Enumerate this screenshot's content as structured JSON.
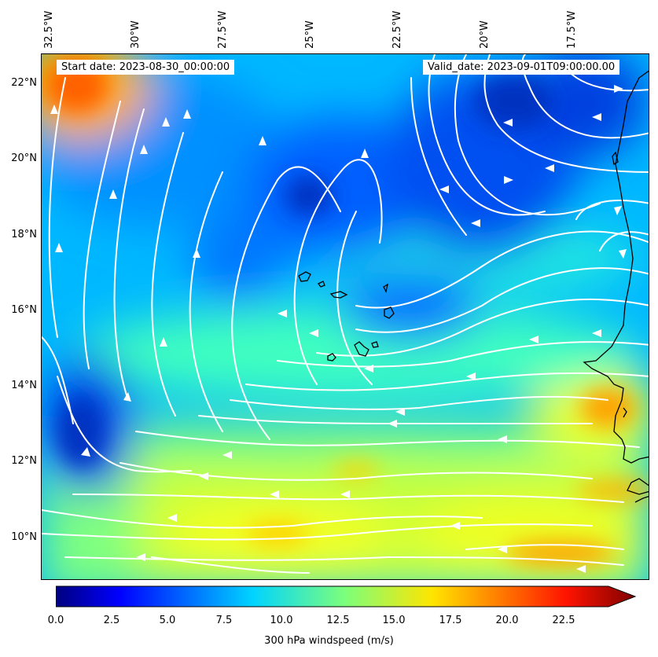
{
  "header": {
    "start_date": "Start date: 2023-08-30_00:00:00",
    "valid_date": "Valid_date: 2023-09-01T09:00:00.00"
  },
  "map": {
    "longitude_labels": [
      "32.5°W",
      "30°W",
      "27.5°W",
      "25°W",
      "22.5°W",
      "20°W",
      "17.5°W"
    ],
    "latitude_labels": [
      "22°N",
      "20°N",
      "18°N",
      "16°N",
      "14°N",
      "12°N",
      "10°N"
    ],
    "field": "windspeed",
    "overlay": "streamlines",
    "streamline_color": "#ffffff",
    "coastline_color": "#000000"
  },
  "colorbar": {
    "label": "300 hPa windspeed (m/s)",
    "tick_labels": [
      "0.0",
      "2.5",
      "5.0",
      "7.5",
      "10.0",
      "12.5",
      "15.0",
      "17.5",
      "20.0",
      "22.5"
    ],
    "colormap": "jet",
    "extend": "max"
  }
}
